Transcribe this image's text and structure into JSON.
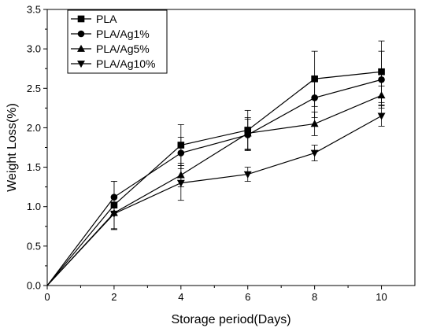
{
  "chart_data": {
    "type": "line",
    "xlabel": "Storage period(Days)",
    "ylabel": "Weight Loss(%)",
    "xlim": [
      0,
      11
    ],
    "ylim": [
      0,
      3.5
    ],
    "xticks": [
      "0",
      "2",
      "4",
      "6",
      "8",
      "10"
    ],
    "yticks": [
      "0.0",
      "0.5",
      "1.0",
      "1.5",
      "2.0",
      "2.5",
      "3.0",
      "3.5"
    ],
    "grid": false,
    "legend_position": "top-left",
    "x": [
      0,
      2,
      4,
      6,
      8,
      10
    ],
    "series": [
      {
        "name": "PLA",
        "marker": "square",
        "values": [
          0,
          1.02,
          1.78,
          1.97,
          2.62,
          2.71
        ],
        "errors": [
          0,
          0.3,
          0.26,
          0.25,
          0.35,
          0.39
        ]
      },
      {
        "name": "PLA/Ag1%",
        "marker": "circle",
        "values": [
          0,
          1.12,
          1.68,
          1.91,
          2.38,
          2.61
        ],
        "errors": [
          0,
          0.2,
          0.2,
          0.2,
          0.25,
          0.36
        ]
      },
      {
        "name": "PLA/Ag5%",
        "marker": "triangle-up",
        "values": [
          0,
          0.92,
          1.4,
          1.93,
          2.05,
          2.41
        ],
        "errors": [
          0,
          0.21,
          0.15,
          0.2,
          0.15,
          0.12
        ]
      },
      {
        "name": "PLA/Ag10%",
        "marker": "triangle-down",
        "values": [
          0,
          0.91,
          1.3,
          1.41,
          1.68,
          2.15
        ],
        "errors": [
          0,
          0.2,
          0.22,
          0.09,
          0.1,
          0.13
        ]
      }
    ],
    "line_color": "#000000"
  }
}
